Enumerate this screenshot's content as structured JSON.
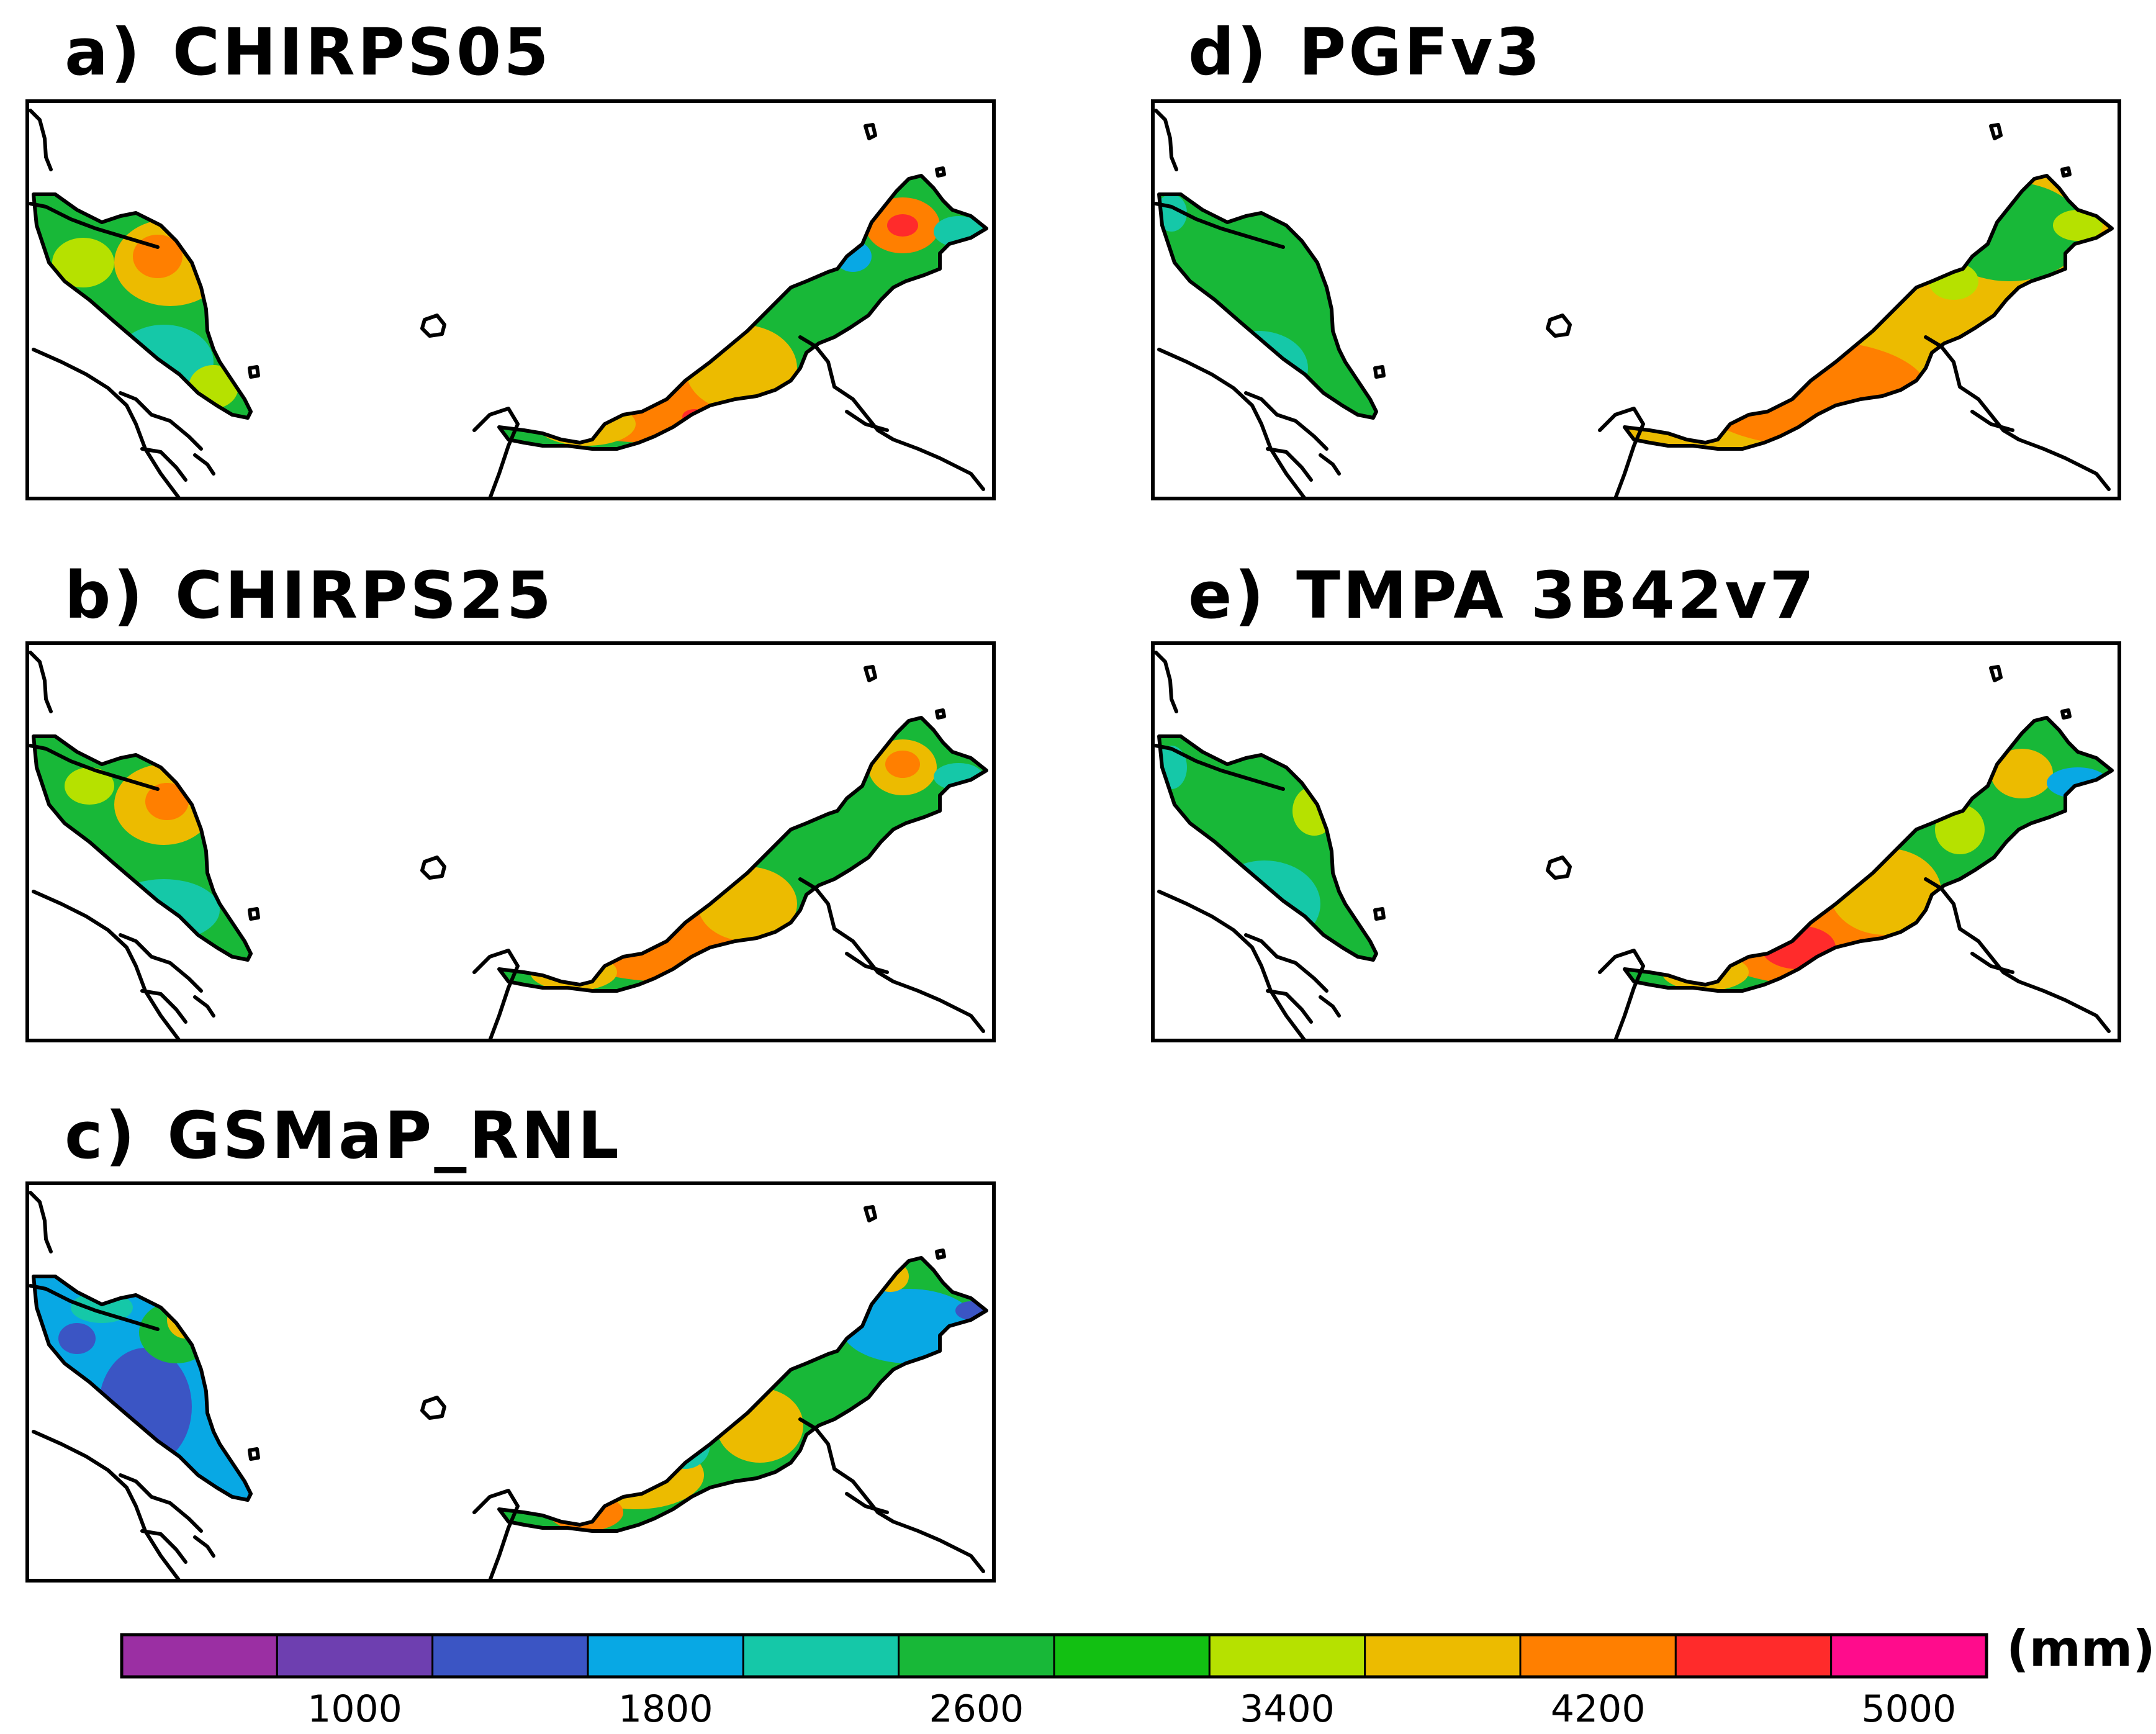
{
  "figure": {
    "panels": [
      {
        "label": "a)",
        "product": "CHIRPS05"
      },
      {
        "label": "b)",
        "product": "CHIRPS25"
      },
      {
        "label": "c)",
        "product": "GSMaP_RNL"
      },
      {
        "label": "d)",
        "product": "PGFv3"
      },
      {
        "label": "e)",
        "product": "TMPA  3B42v7"
      }
    ]
  },
  "colorbar": {
    "unit": "(mm)",
    "colors": [
      "#9b2fa3",
      "#6e3fb0",
      "#3b55c4",
      "#08a8e4",
      "#15c8a8",
      "#18b838",
      "#12c012",
      "#b6e100",
      "#ecbb00",
      "#ff7f00",
      "#ff2b2b",
      "#ff0c8c"
    ],
    "tick_labels": [
      "1000",
      "1800",
      "2600",
      "3400",
      "4200",
      "5000"
    ]
  }
}
